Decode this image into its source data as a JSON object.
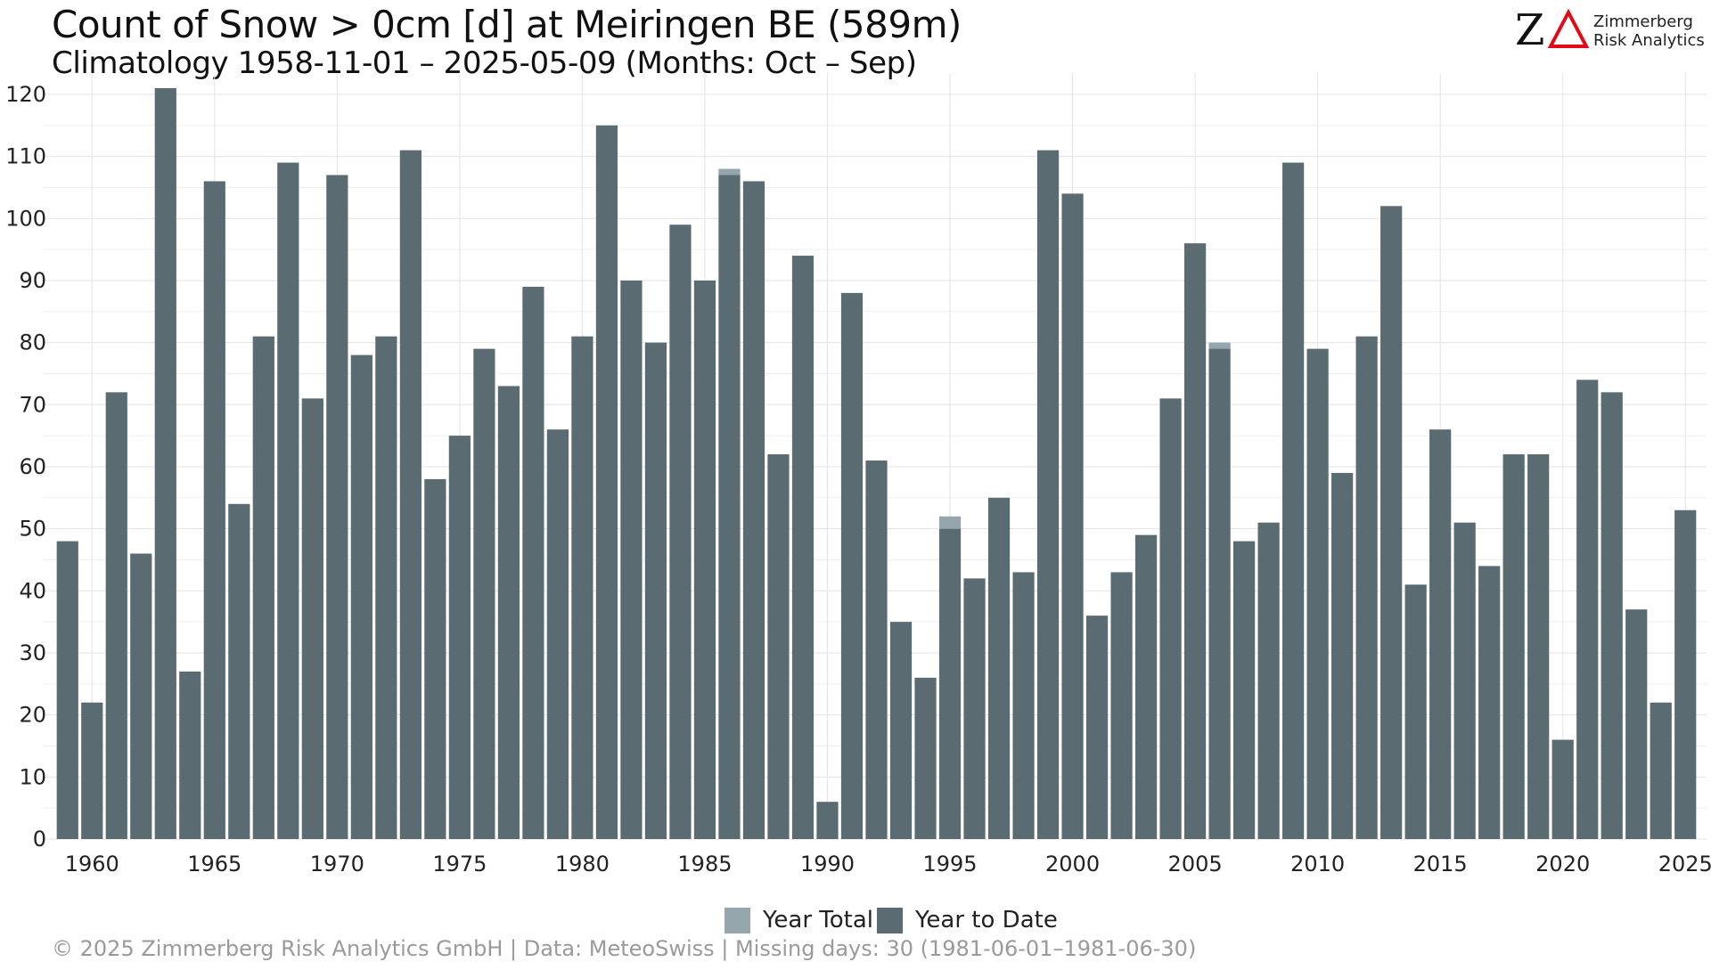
{
  "title": "Count of Snow > 0cm [d] at Meiringen  BE (589m)",
  "subtitle": "Climatology 1958-11-01 – 2025-05-09 (Months: Oct – Sep)",
  "logo": {
    "line1": "Zimmerberg",
    "line2": "Risk Analytics"
  },
  "legend": {
    "year_total": "Year Total",
    "year_to_date": "Year to Date"
  },
  "footer": "©  2025 Zimmerberg Risk Analytics GmbH | Data: MeteoSwiss | Missing days: 30 (1981-06-01–1981-06-30)",
  "colors": {
    "year_to_date": "#5a6c72",
    "year_total": "#96a6ad",
    "grid": "#e3e3e3"
  },
  "icons": {
    "logo": "zimmerberg-za-logo"
  },
  "chart_data": {
    "type": "bar",
    "title": "Count of Snow > 0cm [d] at Meiringen  BE (589m)",
    "subtitle": "Climatology 1958-11-01 – 2025-05-09 (Months: Oct – Sep)",
    "xlabel": "",
    "ylabel": "",
    "x": [
      1959,
      1960,
      1961,
      1962,
      1963,
      1964,
      1965,
      1966,
      1967,
      1968,
      1969,
      1970,
      1971,
      1972,
      1973,
      1974,
      1975,
      1976,
      1977,
      1978,
      1979,
      1980,
      1981,
      1982,
      1983,
      1984,
      1985,
      1986,
      1987,
      1988,
      1989,
      1990,
      1991,
      1992,
      1993,
      1994,
      1995,
      1996,
      1997,
      1998,
      1999,
      2000,
      2001,
      2002,
      2003,
      2004,
      2005,
      2006,
      2007,
      2008,
      2009,
      2010,
      2011,
      2012,
      2013,
      2014,
      2015,
      2016,
      2017,
      2018,
      2019,
      2020,
      2021,
      2022,
      2023,
      2024,
      2025
    ],
    "series": [
      {
        "name": "Year Total",
        "values": [
          48,
          22,
          72,
          46,
          121,
          27,
          106,
          54,
          81,
          109,
          71,
          107,
          78,
          81,
          111,
          58,
          65,
          79,
          73,
          89,
          66,
          81,
          115,
          90,
          80,
          99,
          90,
          108,
          106,
          62,
          94,
          6,
          88,
          61,
          35,
          26,
          52,
          42,
          55,
          43,
          111,
          104,
          36,
          43,
          49,
          71,
          96,
          80,
          48,
          51,
          109,
          79,
          59,
          81,
          102,
          41,
          66,
          51,
          44,
          62,
          62,
          16,
          74,
          72,
          37,
          22,
          53
        ]
      },
      {
        "name": "Year to Date",
        "values": [
          48,
          22,
          72,
          46,
          121,
          27,
          106,
          54,
          81,
          109,
          71,
          107,
          78,
          81,
          111,
          58,
          65,
          79,
          73,
          89,
          66,
          81,
          115,
          90,
          80,
          99,
          90,
          107,
          106,
          62,
          94,
          6,
          88,
          61,
          35,
          26,
          50,
          42,
          55,
          43,
          111,
          104,
          36,
          43,
          49,
          71,
          96,
          79,
          48,
          51,
          109,
          79,
          59,
          81,
          102,
          41,
          66,
          51,
          44,
          62,
          62,
          16,
          74,
          72,
          37,
          22,
          53
        ]
      }
    ],
    "xticks": [
      1960,
      1965,
      1970,
      1975,
      1980,
      1985,
      1990,
      1995,
      2000,
      2005,
      2010,
      2015,
      2020,
      2025
    ],
    "yticks": [
      0,
      10,
      20,
      30,
      40,
      50,
      60,
      70,
      80,
      90,
      100,
      110,
      120
    ],
    "ylim": [
      0,
      122
    ],
    "grid": true,
    "legend_position": "bottom"
  }
}
